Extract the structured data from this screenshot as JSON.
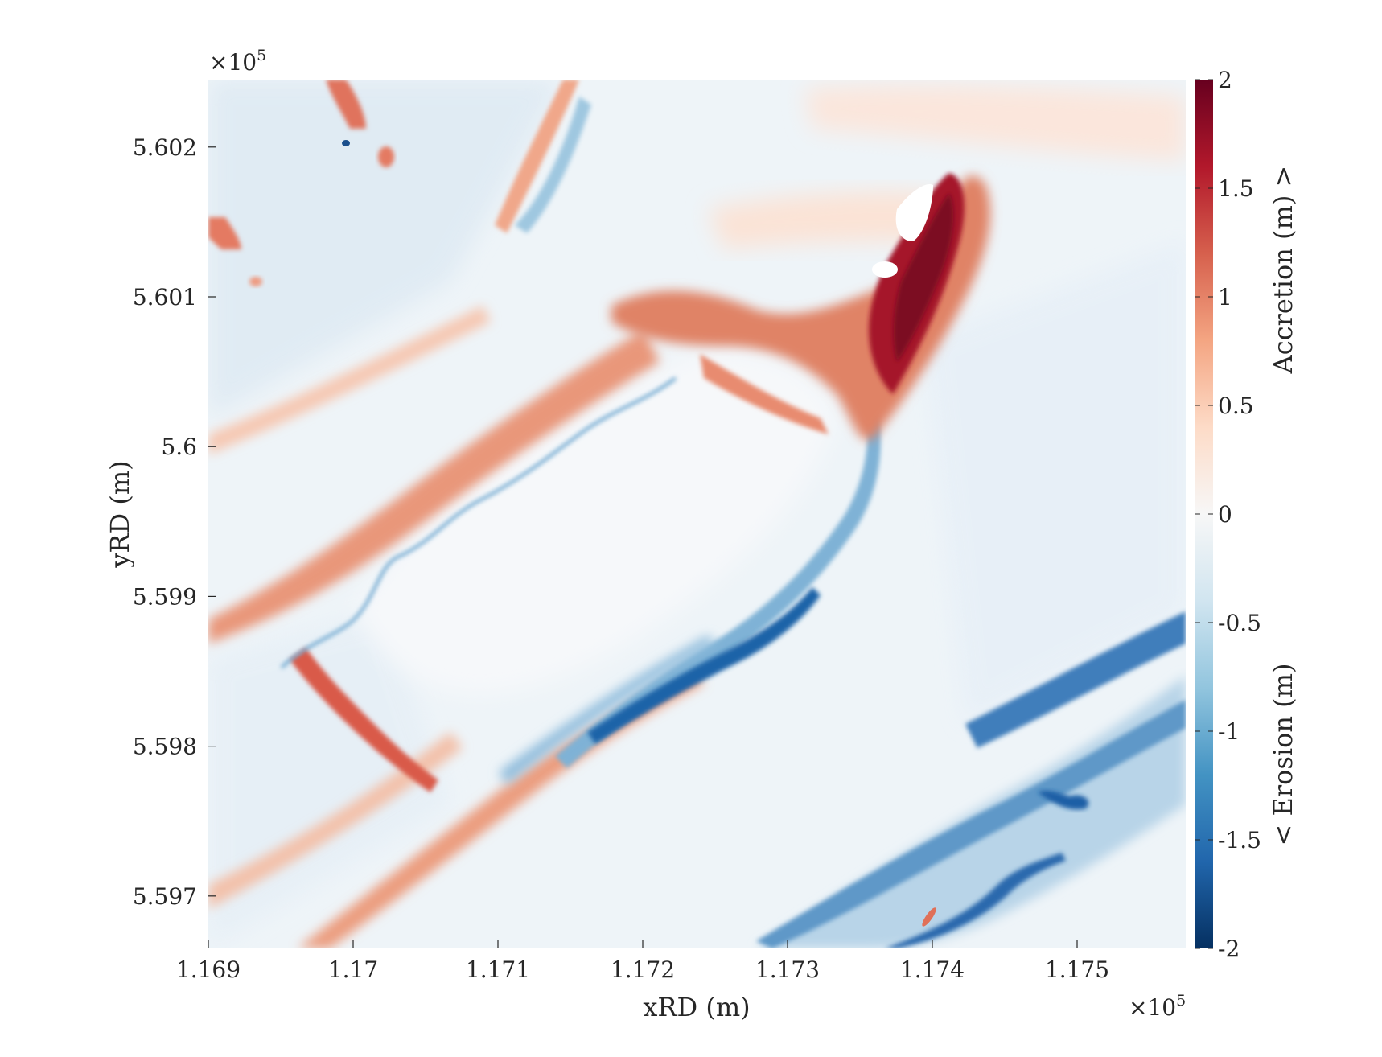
{
  "chart_data": {
    "type": "heatmap",
    "title": "",
    "xlabel": "xRD (m)",
    "ylabel": "yRD (m)",
    "x_multiplier": "×10",
    "x_multiplier_exp": "5",
    "y_multiplier": "×10",
    "y_multiplier_exp": "5",
    "xlim": [
      1.169,
      1.17575
    ],
    "ylim": [
      5.59665,
      5.60245
    ],
    "x_ticks": [
      1.169,
      1.17,
      1.171,
      1.172,
      1.173,
      1.174,
      1.175
    ],
    "x_tick_labels": [
      "1.169",
      "1.17",
      "1.171",
      "1.172",
      "1.173",
      "1.174",
      "1.175"
    ],
    "y_ticks": [
      5.597,
      5.598,
      5.599,
      5.6,
      5.601,
      5.602
    ],
    "y_tick_labels": [
      "5.597",
      "5.598",
      "5.599",
      "5.6",
      "5.601",
      "5.602"
    ],
    "colorbar": {
      "range": [
        -2,
        2
      ],
      "ticks": [
        2,
        1.5,
        1,
        0.5,
        0,
        -0.5,
        -1,
        -1.5,
        -2
      ],
      "tick_labels": [
        "2",
        "1.5",
        "1",
        "0.5",
        "0",
        "-0.5",
        "-1",
        "-1.5",
        "-2"
      ],
      "label_top": "Accretion (m) >",
      "label_bottom": "< Erosion (m)",
      "colormap": [
        "#053061",
        "#2166ac",
        "#4393c3",
        "#92c5de",
        "#d1e5f0",
        "#f7f7f7",
        "#fddbc7",
        "#f4a582",
        "#d6604d",
        "#b2182b",
        "#67001f"
      ]
    },
    "features": [
      {
        "name": "main accretion lobe",
        "x": 1.1739,
        "y": 5.60095,
        "value": 2.0
      },
      {
        "name": "accretion tail",
        "x": 1.1732,
        "y": 5.601,
        "value": 1.1
      },
      {
        "name": "offshore bar accretion",
        "x": 1.1703,
        "y": 5.5993,
        "value": 0.8
      },
      {
        "name": "arc crest erosion",
        "x": 1.1724,
        "y": 5.5982,
        "value": -1.6
      },
      {
        "name": "coastal erosion strip",
        "x": 1.1748,
        "y": 5.5975,
        "value": -1.2
      },
      {
        "name": "pipe accretion line",
        "x": 1.1701,
        "y": 5.5981,
        "value": 1.0
      }
    ]
  }
}
